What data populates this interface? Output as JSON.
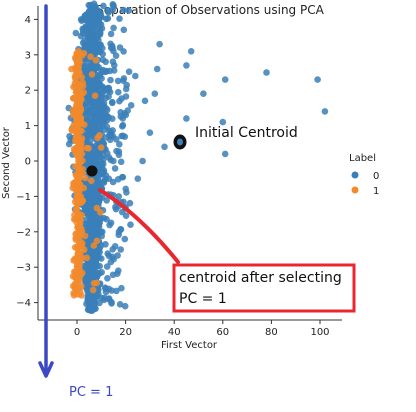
{
  "chart_data": {
    "type": "scatter",
    "title": "Separation of Observations using PCA",
    "xlabel": "First Vector",
    "ylabel": "Second Vector",
    "xlim": [
      -12,
      111
    ],
    "ylim": [
      -4.45,
      4.95
    ],
    "xticks": [
      0,
      20,
      40,
      60,
      80,
      100
    ],
    "yticks": [
      -4,
      -3,
      -2,
      -1,
      0,
      1,
      2,
      3,
      4
    ],
    "grid": false,
    "legend": {
      "title": "Label",
      "placement": "right",
      "entries": [
        {
          "label": "0",
          "color": "#3a7fb8"
        },
        {
          "label": "1",
          "color": "#f28a2b"
        }
      ]
    },
    "series": [
      {
        "name": "0",
        "color": "#3a7fb8",
        "outliers": [
          {
            "x": 34,
            "y": 3.3
          },
          {
            "x": 47,
            "y": 3.1
          },
          {
            "x": 45,
            "y": 2.7
          },
          {
            "x": 45,
            "y": 1.2
          },
          {
            "x": 42,
            "y": 0.5
          },
          {
            "x": 52,
            "y": 1.9
          },
          {
            "x": 60,
            "y": 1.1
          },
          {
            "x": 61,
            "y": 0.2
          },
          {
            "x": 61,
            "y": 2.3
          },
          {
            "x": 78,
            "y": 2.5
          },
          {
            "x": 99,
            "y": 2.3
          },
          {
            "x": 102,
            "y": 1.4
          },
          {
            "x": 32,
            "y": 1.9
          },
          {
            "x": 28,
            "y": 1.7
          },
          {
            "x": 30,
            "y": 0.8
          },
          {
            "x": 36,
            "y": 0.4
          },
          {
            "x": 25,
            "y": -0.5
          },
          {
            "x": 22,
            "y": -1.8
          },
          {
            "x": 20,
            "y": -1.3
          },
          {
            "x": 24,
            "y": 2.4
          },
          {
            "x": 27,
            "y": 0.0
          },
          {
            "x": 18,
            "y": -2.5
          },
          {
            "x": 33,
            "y": 2.6
          }
        ]
      },
      {
        "name": "1",
        "color": "#f28a2b"
      }
    ]
  },
  "annotations": {
    "initial_centroid_label": "Initial Centroid",
    "initial_centroid_point": {
      "x": 43,
      "y": 0.55
    },
    "final_centroid_point": {
      "x": 7,
      "y": -0.3
    },
    "callout_text_line1": "centroid after selecting",
    "callout_text_line2": "PC = 1",
    "pc_label": "PC = 1",
    "arrow_color": "#3b49c6",
    "callout_color": "#e8282e"
  }
}
